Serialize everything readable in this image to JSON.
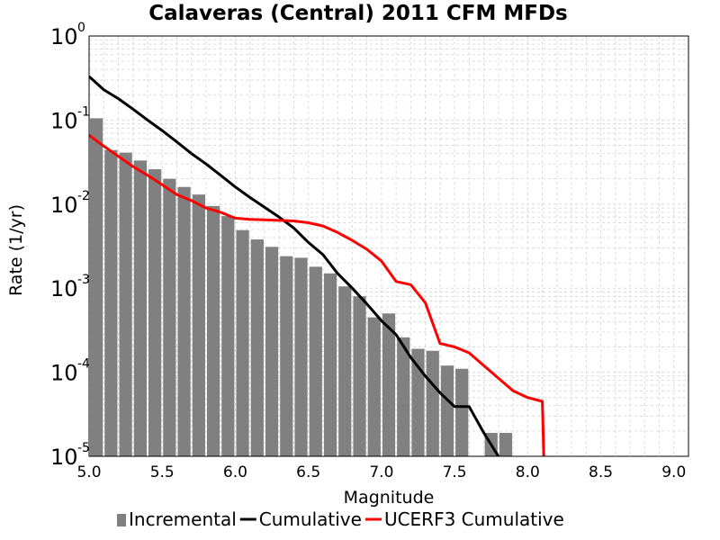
{
  "chart_data": {
    "type": "bar",
    "title": "Calaveras (Central) 2011 CFM MFDs",
    "xlabel": "Magnitude",
    "ylabel": "Rate (1/yr)",
    "xlim": [
      5.0,
      9.1
    ],
    "ylim": [
      1e-05,
      1
    ],
    "yscale": "log",
    "grid": true,
    "legend_position": "bottom",
    "xticks": [
      "5.0",
      "5.5",
      "6.0",
      "6.5",
      "7.0",
      "7.5",
      "8.0",
      "8.5",
      "9.0"
    ],
    "yticks": [
      {
        "base": "10",
        "exp": "0"
      },
      {
        "base": "10",
        "exp": "-1"
      },
      {
        "base": "10",
        "exp": "-2"
      },
      {
        "base": "10",
        "exp": "-3"
      },
      {
        "base": "10",
        "exp": "-4"
      },
      {
        "base": "10",
        "exp": "-5"
      }
    ],
    "series": [
      {
        "name": "Incremental",
        "kind": "bar",
        "color": "#808080",
        "x": [
          5.05,
          5.15,
          5.25,
          5.35,
          5.45,
          5.55,
          5.65,
          5.75,
          5.85,
          5.95,
          6.05,
          6.15,
          6.25,
          6.35,
          6.45,
          6.55,
          6.65,
          6.75,
          6.85,
          6.95,
          7.05,
          7.15,
          7.25,
          7.35,
          7.45,
          7.55,
          7.65,
          7.75,
          7.85
        ],
        "values": [
          0.105,
          0.044,
          0.041,
          0.033,
          0.026,
          0.02,
          0.016,
          0.013,
          0.0095,
          0.0072,
          0.0049,
          0.0038,
          0.0031,
          0.0024,
          0.0023,
          0.0018,
          0.0015,
          0.00105,
          0.0008,
          0.00045,
          0.0005,
          0.00026,
          0.00019,
          0.00018,
          0.00012,
          0.00011,
          0,
          1.9e-05,
          1.9e-05
        ]
      },
      {
        "name": "Cumulative",
        "kind": "line",
        "color": "#000000",
        "x": [
          5.0,
          5.1,
          5.2,
          5.3,
          5.4,
          5.5,
          5.6,
          5.7,
          5.8,
          5.9,
          6.0,
          6.1,
          6.2,
          6.3,
          6.4,
          6.5,
          6.6,
          6.7,
          6.8,
          6.9,
          7.0,
          7.1,
          7.2,
          7.3,
          7.4,
          7.5,
          7.6,
          7.7,
          7.8
        ],
        "values": [
          0.33,
          0.23,
          0.18,
          0.135,
          0.1,
          0.075,
          0.055,
          0.04,
          0.03,
          0.022,
          0.016,
          0.012,
          0.0092,
          0.007,
          0.0052,
          0.0035,
          0.0025,
          0.0015,
          0.001,
          0.00065,
          0.00041,
          0.00028,
          0.00015,
          9e-05,
          5.7e-05,
          3.9e-05,
          3.9e-05,
          1.9e-05,
          1e-05
        ]
      },
      {
        "name": "UCERF3 Cumulative",
        "kind": "line",
        "color": "#ff0000",
        "x": [
          5.0,
          5.1,
          5.2,
          5.3,
          5.4,
          5.5,
          5.6,
          5.7,
          5.8,
          5.9,
          6.0,
          6.1,
          6.2,
          6.3,
          6.4,
          6.5,
          6.6,
          6.7,
          6.8,
          6.9,
          7.0,
          7.1,
          7.2,
          7.3,
          7.4,
          7.5,
          7.6,
          7.7,
          7.8,
          7.9,
          8.0,
          8.1,
          8.11
        ],
        "values": [
          0.066,
          0.049,
          0.037,
          0.028,
          0.022,
          0.017,
          0.013,
          0.011,
          0.009,
          0.008,
          0.0068,
          0.0066,
          0.0065,
          0.0064,
          0.0063,
          0.006,
          0.0055,
          0.0046,
          0.0037,
          0.0029,
          0.0021,
          0.0012,
          0.0011,
          0.00067,
          0.00022,
          0.0002,
          0.00017,
          0.00012,
          8.5e-05,
          6e-05,
          5e-05,
          4.5e-05,
          1e-05
        ]
      }
    ]
  }
}
